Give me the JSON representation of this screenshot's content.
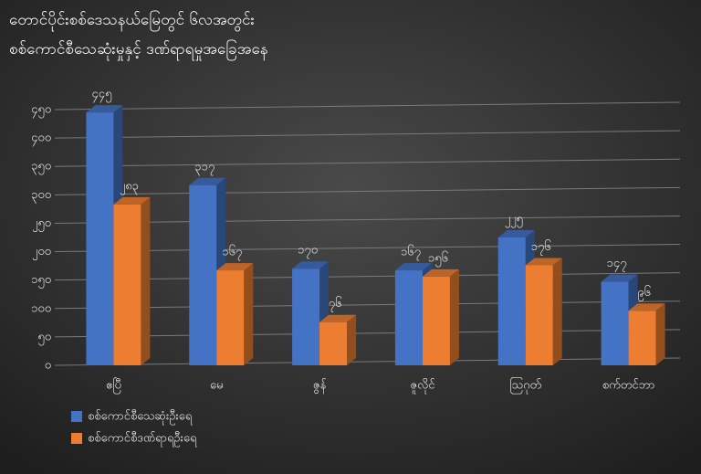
{
  "chart_data": {
    "type": "bar",
    "title": [
      "တောင်ပိုင်းစစ်ဒေသနယ်မြေတွင် ၆လအတွင်း",
      "စစ်ကောင်စီသေဆုံးမှုနှင့် ဒဏ်ရာရမှုအခြေအနေ"
    ],
    "categories": [
      "ဧပြီ",
      "မေ",
      "ဇွန်",
      "ဇူလိုင်",
      "သြဂုတ်",
      "စက်တင်ဘာ"
    ],
    "series": [
      {
        "name": "စစ်ကောင်စီသေဆုံးဦးရေ",
        "color": "#4472c4",
        "values": [
          445,
          317,
          170,
          167,
          225,
          147
        ],
        "value_labels": [
          "၄၄၅",
          "၃၁၇",
          "၁၇၀",
          "၁၆၇",
          "၂၂၅",
          "၁၄၇"
        ]
      },
      {
        "name": "စစ်ကောင်စီဒဏ်ရာရဦးရေ",
        "color": "#ed7d31",
        "values": [
          283,
          167,
          76,
          156,
          176,
          96
        ],
        "value_labels": [
          "၂၈၃",
          "၁၆၇",
          "၇၆",
          "၁၅၆",
          "၁၇၆",
          "၉၆"
        ]
      }
    ],
    "ylim": [
      0,
      450
    ],
    "yticks": [
      {
        "value": 0,
        "label": "၀"
      },
      {
        "value": 50,
        "label": "၅၀"
      },
      {
        "value": 100,
        "label": "၁၀၀"
      },
      {
        "value": 150,
        "label": "၁၅၀"
      },
      {
        "value": 200,
        "label": "၂၀၀"
      },
      {
        "value": 250,
        "label": "၂၅၀"
      },
      {
        "value": 300,
        "label": "၃၀၀"
      },
      {
        "value": 350,
        "label": "၃၅၀"
      },
      {
        "value": 400,
        "label": "၄၀၀"
      },
      {
        "value": 450,
        "label": "၄၅၀"
      }
    ],
    "grid": true,
    "legend": "bottom-left"
  }
}
